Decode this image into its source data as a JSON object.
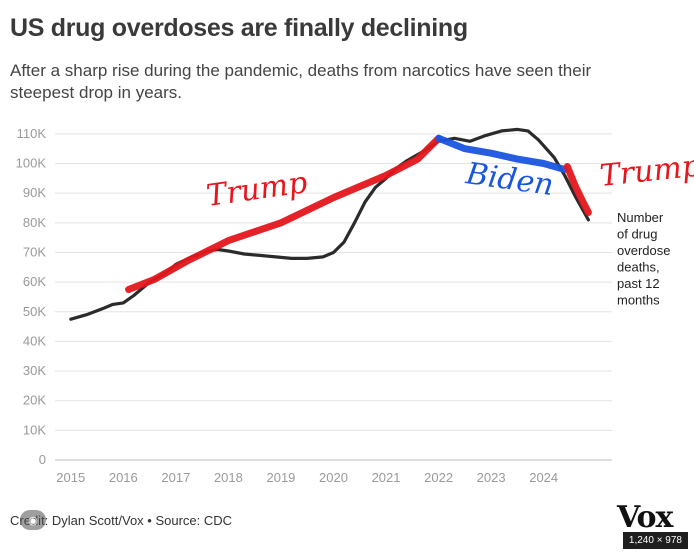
{
  "title": "US drug overdoses are finally declining",
  "subtitle": "After a sharp rise during the pandemic, deaths from narcotics have seen their steepest drop in years.",
  "credit": "Credit: Dylan Scott/Vox • Source: CDC",
  "logo": "Vox",
  "image_dims": "1,240 × 978",
  "lens_icon": "lens-icon",
  "chart_data": {
    "type": "line",
    "title": "US drug overdoses are finally declining",
    "xlabel": "",
    "ylabel": "",
    "x_ticks": [
      "2015",
      "2016",
      "2017",
      "2018",
      "2019",
      "2020",
      "2021",
      "2022",
      "2023",
      "2024"
    ],
    "y_ticks": [
      {
        "value": 0,
        "label": "0"
      },
      {
        "value": 10000,
        "label": "10K"
      },
      {
        "value": 20000,
        "label": "20K"
      },
      {
        "value": 30000,
        "label": "30K"
      },
      {
        "value": 40000,
        "label": "40K"
      },
      {
        "value": 50000,
        "label": "50K"
      },
      {
        "value": 60000,
        "label": "60K"
      },
      {
        "value": 70000,
        "label": "70K"
      },
      {
        "value": 80000,
        "label": "80K"
      },
      {
        "value": 90000,
        "label": "90K"
      },
      {
        "value": 100000,
        "label": "100K"
      },
      {
        "value": 110000,
        "label": "110K"
      }
    ],
    "xlim": [
      2014.7,
      2025.3
    ],
    "ylim": [
      0,
      113000
    ],
    "grid": true,
    "series": [
      {
        "name": "Number of drug overdose deaths, past 12 months",
        "label_lines": [
          "Number",
          "of drug",
          "overdose",
          "deaths,",
          "past 12",
          "months"
        ],
        "color": "#2b2b2b",
        "points": [
          [
            2015.0,
            47500
          ],
          [
            2015.3,
            49000
          ],
          [
            2015.6,
            51000
          ],
          [
            2015.8,
            52500
          ],
          [
            2016.0,
            53000
          ],
          [
            2016.2,
            55500
          ],
          [
            2016.5,
            60000
          ],
          [
            2016.8,
            63000
          ],
          [
            2017.0,
            66000
          ],
          [
            2017.3,
            68500
          ],
          [
            2017.6,
            70500
          ],
          [
            2017.8,
            71000
          ],
          [
            2018.0,
            70500
          ],
          [
            2018.3,
            69500
          ],
          [
            2018.6,
            69000
          ],
          [
            2018.9,
            68500
          ],
          [
            2019.2,
            68000
          ],
          [
            2019.5,
            68000
          ],
          [
            2019.8,
            68500
          ],
          [
            2020.0,
            70000
          ],
          [
            2020.2,
            73500
          ],
          [
            2020.4,
            80000
          ],
          [
            2020.6,
            87000
          ],
          [
            2020.8,
            92000
          ],
          [
            2021.0,
            95000
          ],
          [
            2021.2,
            98500
          ],
          [
            2021.4,
            101000
          ],
          [
            2021.7,
            104000
          ],
          [
            2022.0,
            107500
          ],
          [
            2022.3,
            108500
          ],
          [
            2022.6,
            107500
          ],
          [
            2022.9,
            109500
          ],
          [
            2023.2,
            111000
          ],
          [
            2023.5,
            111500
          ],
          [
            2023.7,
            111000
          ],
          [
            2023.9,
            108000
          ],
          [
            2024.2,
            102000
          ],
          [
            2024.4,
            96000
          ],
          [
            2024.6,
            89000
          ],
          [
            2024.85,
            81000
          ]
        ]
      }
    ],
    "annotations": [
      {
        "label": "Trump",
        "color": "#e5161d",
        "points": [
          [
            2016.1,
            57500
          ],
          [
            2016.6,
            61000
          ],
          [
            2017.2,
            67000
          ],
          [
            2018.0,
            74000
          ],
          [
            2019.0,
            80000
          ],
          [
            2020.0,
            88500
          ],
          [
            2021.0,
            96000
          ],
          [
            2021.6,
            101500
          ],
          [
            2022.0,
            108500
          ]
        ]
      },
      {
        "label": "Biden",
        "color": "#1a55e0",
        "points": [
          [
            2022.0,
            108500
          ],
          [
            2022.5,
            105000
          ],
          [
            2023.0,
            103500
          ],
          [
            2023.5,
            101500
          ],
          [
            2024.0,
            100000
          ],
          [
            2024.4,
            98000
          ]
        ]
      },
      {
        "label": "Trump",
        "color": "#e5161d",
        "points": [
          [
            2024.45,
            99000
          ],
          [
            2024.6,
            92500
          ],
          [
            2024.75,
            87000
          ],
          [
            2024.85,
            83500
          ]
        ]
      }
    ]
  }
}
